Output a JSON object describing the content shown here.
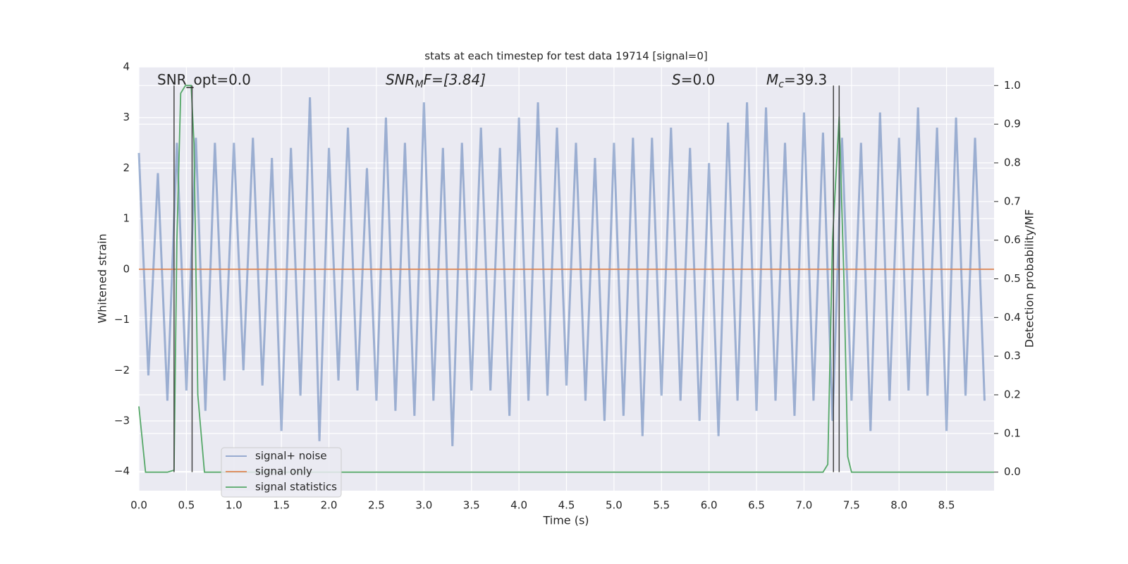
{
  "chart_data": {
    "type": "line",
    "title": "stats at each timestep for test data 19714 [signal=0]",
    "xlabel": "Time (s)",
    "ylabel": "Whitened strain",
    "y2label": "Detection probability/MF",
    "xlim": [
      0,
      9.0
    ],
    "ylim": [
      -4.38,
      4.0
    ],
    "y2lim": [
      -0.048,
      1.048
    ],
    "xticks": [
      {
        "value": 0,
        "label": "0.0"
      },
      {
        "value": 0.5,
        "label": "0.5"
      },
      {
        "value": 1,
        "label": "1.0"
      },
      {
        "value": 1.5,
        "label": "1.5"
      },
      {
        "value": 2,
        "label": "2.0"
      },
      {
        "value": 2.5,
        "label": "2.5"
      },
      {
        "value": 3,
        "label": "3.0"
      },
      {
        "value": 3.5,
        "label": "3.5"
      },
      {
        "value": 4,
        "label": "4.0"
      },
      {
        "value": 4.5,
        "label": "4.5"
      },
      {
        "value": 5,
        "label": "5.0"
      },
      {
        "value": 5.5,
        "label": "5.5"
      },
      {
        "value": 6,
        "label": "6.0"
      },
      {
        "value": 6.5,
        "label": "6.5"
      },
      {
        "value": 7,
        "label": "7.0"
      },
      {
        "value": 7.5,
        "label": "7.5"
      },
      {
        "value": 8,
        "label": "8.0"
      },
      {
        "value": 8.5,
        "label": "8.5"
      }
    ],
    "yticks": [
      {
        "value": -4,
        "label": "−4"
      },
      {
        "value": -3,
        "label": "−3"
      },
      {
        "value": -2,
        "label": "−2"
      },
      {
        "value": -1,
        "label": "−1"
      },
      0,
      1,
      2,
      3,
      4
    ],
    "y2ticks": [
      {
        "value": 0,
        "label": "0.0"
      },
      {
        "value": 0.1,
        "label": "0.1"
      },
      {
        "value": 0.2,
        "label": "0.2"
      },
      {
        "value": 0.3,
        "label": "0.3"
      },
      {
        "value": 0.4,
        "label": "0.4"
      },
      {
        "value": 0.5,
        "label": "0.5"
      },
      {
        "value": 0.6,
        "label": "0.6"
      },
      {
        "value": 0.7,
        "label": "0.7"
      },
      {
        "value": 0.8,
        "label": "0.8"
      },
      {
        "value": 0.9,
        "label": "0.9"
      },
      {
        "value": 1,
        "label": "1.0"
      }
    ],
    "grid": true,
    "legend": "lower left",
    "annotations": [
      {
        "text": "SNR_opt=0.0"
      },
      {
        "text": "SNR",
        "sub": "M",
        "after": "F=[3.84]"
      },
      {
        "text": "S",
        "after": "=0.0"
      },
      {
        "text": "M",
        "sub": "c",
        "after": "=39.3"
      }
    ],
    "vlines": [
      0.37,
      0.56,
      7.31,
      7.37
    ],
    "series": [
      {
        "name": "signal+ noise",
        "color": "#4c72b0",
        "x": [
          0.0,
          0.1,
          0.2,
          0.3,
          0.4,
          0.5,
          0.6,
          0.7,
          0.8,
          0.9,
          1.0,
          1.1,
          1.2,
          1.3,
          1.4,
          1.5,
          1.6,
          1.7,
          1.8,
          1.9,
          2.0,
          2.1,
          2.2,
          2.3,
          2.4,
          2.5,
          2.6,
          2.7,
          2.8,
          2.9,
          3.0,
          3.1,
          3.2,
          3.3,
          3.4,
          3.5,
          3.6,
          3.7,
          3.8,
          3.9,
          4.0,
          4.1,
          4.2,
          4.3,
          4.4,
          4.5,
          4.6,
          4.7,
          4.8,
          4.9,
          5.0,
          5.1,
          5.2,
          5.3,
          5.4,
          5.5,
          5.6,
          5.7,
          5.8,
          5.9,
          6.0,
          6.1,
          6.2,
          6.3,
          6.4,
          6.5,
          6.6,
          6.7,
          6.8,
          6.9,
          7.0,
          7.1,
          7.2,
          7.3,
          7.4,
          7.5,
          7.6,
          7.7,
          7.8,
          7.9,
          8.0,
          8.1,
          8.2,
          8.3,
          8.4,
          8.5,
          8.6,
          8.7,
          8.8,
          8.9
        ],
        "values": [
          2.3,
          -2.1,
          1.9,
          -2.6,
          2.5,
          -2.4,
          2.6,
          -2.8,
          2.5,
          -2.2,
          2.5,
          -2.0,
          2.6,
          -2.3,
          2.2,
          -3.2,
          2.4,
          -2.5,
          3.4,
          -3.4,
          2.4,
          -2.2,
          2.8,
          -2.4,
          2.0,
          -2.6,
          3.0,
          -2.8,
          2.5,
          -2.9,
          3.3,
          -2.6,
          2.4,
          -3.5,
          2.5,
          -2.4,
          2.8,
          -2.4,
          2.4,
          -2.9,
          3.0,
          -2.6,
          3.3,
          -2.5,
          2.8,
          -2.3,
          2.5,
          -2.6,
          2.2,
          -3.0,
          2.5,
          -2.9,
          2.6,
          -3.3,
          2.6,
          -2.5,
          2.8,
          -2.6,
          2.4,
          -3.0,
          2.1,
          -3.3,
          2.9,
          -2.6,
          3.3,
          -2.8,
          3.2,
          -2.6,
          2.5,
          -2.9,
          3.1,
          -2.6,
          2.7,
          -3.0,
          2.6,
          -2.6,
          2.5,
          -3.2,
          3.1,
          -2.6,
          2.6,
          -2.4,
          3.2,
          -2.5,
          2.8,
          -3.2,
          3.0,
          -2.5,
          2.6,
          -2.6
        ]
      },
      {
        "name": "signal only",
        "color": "#dd8452",
        "x": [
          0.0,
          9.0
        ],
        "values": [
          0,
          0
        ]
      },
      {
        "name": "signal statistics",
        "color": "#55a868",
        "axis": "y2",
        "x": [
          0.0,
          0.07,
          0.15,
          0.3,
          0.37,
          0.4,
          0.44,
          0.49,
          0.55,
          0.58,
          0.62,
          0.69,
          7.2,
          7.25,
          7.3,
          7.37,
          7.42,
          7.46,
          7.5,
          9.0
        ],
        "values": [
          0.17,
          0.0,
          0.0,
          0.0,
          0.005,
          0.6,
          0.98,
          1.0,
          1.0,
          0.85,
          0.2,
          0.0,
          0.0,
          0.02,
          0.6,
          0.92,
          0.5,
          0.04,
          0.0,
          0.0
        ]
      }
    ]
  }
}
